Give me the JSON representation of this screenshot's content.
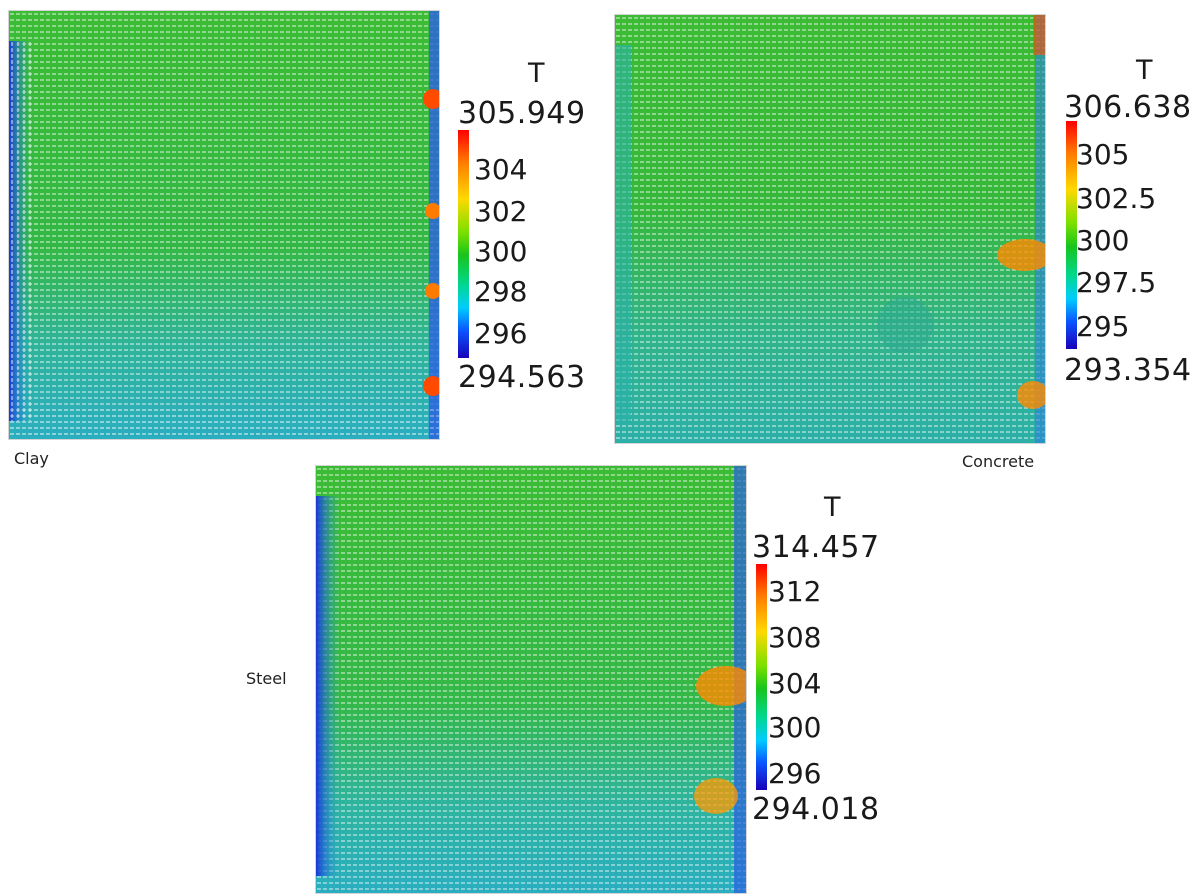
{
  "panels": [
    {
      "name": "Clay",
      "scalar_title": "T",
      "max": "305.949",
      "min": "294.563",
      "ticks": [
        "304",
        "302",
        "300",
        "298",
        "296"
      ]
    },
    {
      "name": "Concrete",
      "scalar_title": "T",
      "max": "306.638",
      "min": "293.354",
      "ticks": [
        "305",
        "302.5",
        "300",
        "297.5",
        "295"
      ]
    },
    {
      "name": "Steel",
      "scalar_title": "T",
      "max": "314.457",
      "min": "294.018",
      "ticks": [
        "312",
        "308",
        "304",
        "300",
        "296"
      ]
    }
  ],
  "colors": {
    "field_green": "#35b838",
    "cool_teal": "#2fb3a8",
    "wall_blue": "#1a3ad8",
    "hot_red": "#ff2a00",
    "vectors": "#ffffff"
  }
}
